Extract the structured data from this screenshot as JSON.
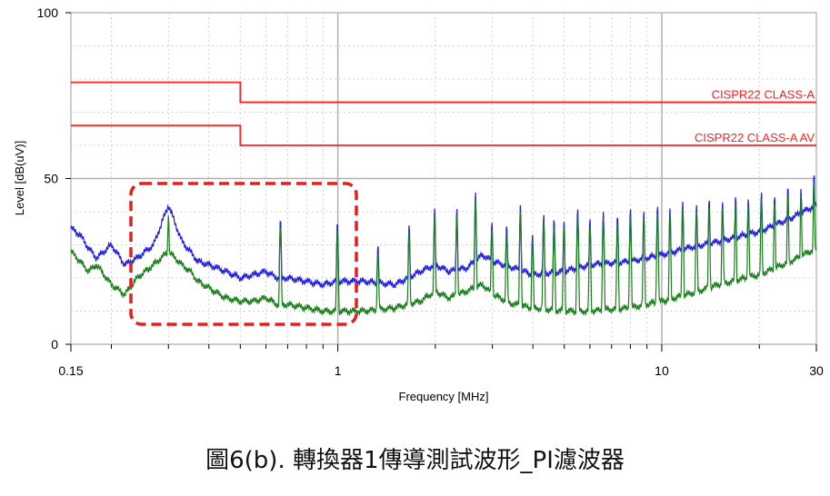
{
  "caption": "圖6(b). 轉換器1傳導測試波形_PI濾波器",
  "chart_data": {
    "type": "line",
    "xlabel": "Frequency [MHz]",
    "ylabel": "Level [dB(uV)]",
    "xscale": "log",
    "xlim": [
      0.15,
      30
    ],
    "ylim": [
      0,
      100
    ],
    "x_ticks": [
      0.15,
      1,
      10,
      30
    ],
    "x_tick_labels": [
      "0.15",
      "1",
      "10",
      "30"
    ],
    "y_ticks": [
      0,
      50,
      100
    ],
    "y_tick_labels": [
      "0",
      "50",
      "100"
    ],
    "grid": true,
    "limit_lines": [
      {
        "name": "CISPR22 CLASS-A",
        "color": "#ff2020",
        "x": [
          0.15,
          0.5,
          0.5,
          30
        ],
        "y": [
          79,
          79,
          73,
          73
        ]
      },
      {
        "name": "CISPR22 CLASS-A AV",
        "color": "#ff2020",
        "x": [
          0.15,
          0.5,
          0.5,
          30
        ],
        "y": [
          66,
          66,
          60,
          60
        ]
      }
    ],
    "series": [
      {
        "color": "#1f1fe6",
        "x": [
          0.15,
          0.16,
          0.17,
          0.18,
          0.2,
          0.22,
          0.24,
          0.27,
          0.3,
          0.33,
          0.35,
          0.37,
          0.4,
          0.45,
          0.5,
          0.55,
          0.6,
          0.65,
          0.7,
          0.8,
          0.9,
          1.0,
          1.2,
          1.5,
          1.8,
          2.0,
          2.2,
          2.5,
          2.8,
          3.0,
          3.5,
          4.0,
          5.0,
          6.0,
          8.0,
          10.0,
          12.0,
          15.0,
          20.0,
          25.0,
          30.0
        ],
        "y": [
          35,
          33,
          29,
          26,
          30,
          24,
          26,
          30,
          42,
          31,
          28,
          25,
          24,
          22,
          20,
          21,
          22,
          20,
          20,
          19,
          18,
          19,
          19,
          18,
          22,
          24,
          22,
          23,
          27,
          25,
          23,
          21,
          22,
          24,
          25,
          27,
          29,
          31,
          34,
          38,
          42
        ]
      },
      {
        "color": "#1a7f1a",
        "x": [
          0.15,
          0.16,
          0.17,
          0.18,
          0.2,
          0.22,
          0.24,
          0.27,
          0.3,
          0.33,
          0.35,
          0.37,
          0.4,
          0.45,
          0.5,
          0.55,
          0.6,
          0.65,
          0.7,
          0.8,
          0.9,
          1.0,
          1.2,
          1.5,
          1.8,
          2.0,
          2.2,
          2.5,
          2.8,
          3.0,
          3.5,
          4.0,
          5.0,
          6.0,
          8.0,
          10.0,
          12.0,
          15.0,
          20.0,
          25.0,
          30.0
        ],
        "y": [
          28,
          25,
          22,
          24,
          18,
          15,
          20,
          24,
          28,
          24,
          22,
          19,
          17,
          14,
          13,
          13,
          14,
          12,
          12,
          11,
          10,
          10,
          10,
          11,
          13,
          16,
          14,
          16,
          18,
          15,
          12,
          11,
          10,
          10,
          11,
          13,
          15,
          18,
          21,
          25,
          29
        ]
      }
    ],
    "spikes": [
      {
        "x": 0.3,
        "y": 41
      },
      {
        "x": 0.665,
        "y": 38
      },
      {
        "x": 0.997,
        "y": 37
      },
      {
        "x": 1.33,
        "y": 30
      },
      {
        "x": 1.66,
        "y": 36
      },
      {
        "x": 1.99,
        "y": 41
      },
      {
        "x": 2.33,
        "y": 41
      },
      {
        "x": 2.66,
        "y": 46
      },
      {
        "x": 2.99,
        "y": 37
      },
      {
        "x": 3.32,
        "y": 36
      },
      {
        "x": 3.66,
        "y": 42
      },
      {
        "x": 3.99,
        "y": 33
      },
      {
        "x": 4.32,
        "y": 39
      },
      {
        "x": 4.65,
        "y": 38
      },
      {
        "x": 4.99,
        "y": 37
      },
      {
        "x": 5.5,
        "y": 41
      },
      {
        "x": 6.0,
        "y": 38
      },
      {
        "x": 6.6,
        "y": 40
      },
      {
        "x": 7.3,
        "y": 39
      },
      {
        "x": 8.0,
        "y": 41
      },
      {
        "x": 8.8,
        "y": 40
      },
      {
        "x": 9.7,
        "y": 42
      },
      {
        "x": 10.6,
        "y": 41
      },
      {
        "x": 11.6,
        "y": 43
      },
      {
        "x": 12.8,
        "y": 42
      },
      {
        "x": 14.0,
        "y": 44
      },
      {
        "x": 15.4,
        "y": 43
      },
      {
        "x": 16.9,
        "y": 45
      },
      {
        "x": 18.5,
        "y": 44
      },
      {
        "x": 20.3,
        "y": 46
      },
      {
        "x": 22.3,
        "y": 45
      },
      {
        "x": 24.5,
        "y": 48
      },
      {
        "x": 26.9,
        "y": 47
      },
      {
        "x": 29.5,
        "y": 52
      }
    ]
  }
}
